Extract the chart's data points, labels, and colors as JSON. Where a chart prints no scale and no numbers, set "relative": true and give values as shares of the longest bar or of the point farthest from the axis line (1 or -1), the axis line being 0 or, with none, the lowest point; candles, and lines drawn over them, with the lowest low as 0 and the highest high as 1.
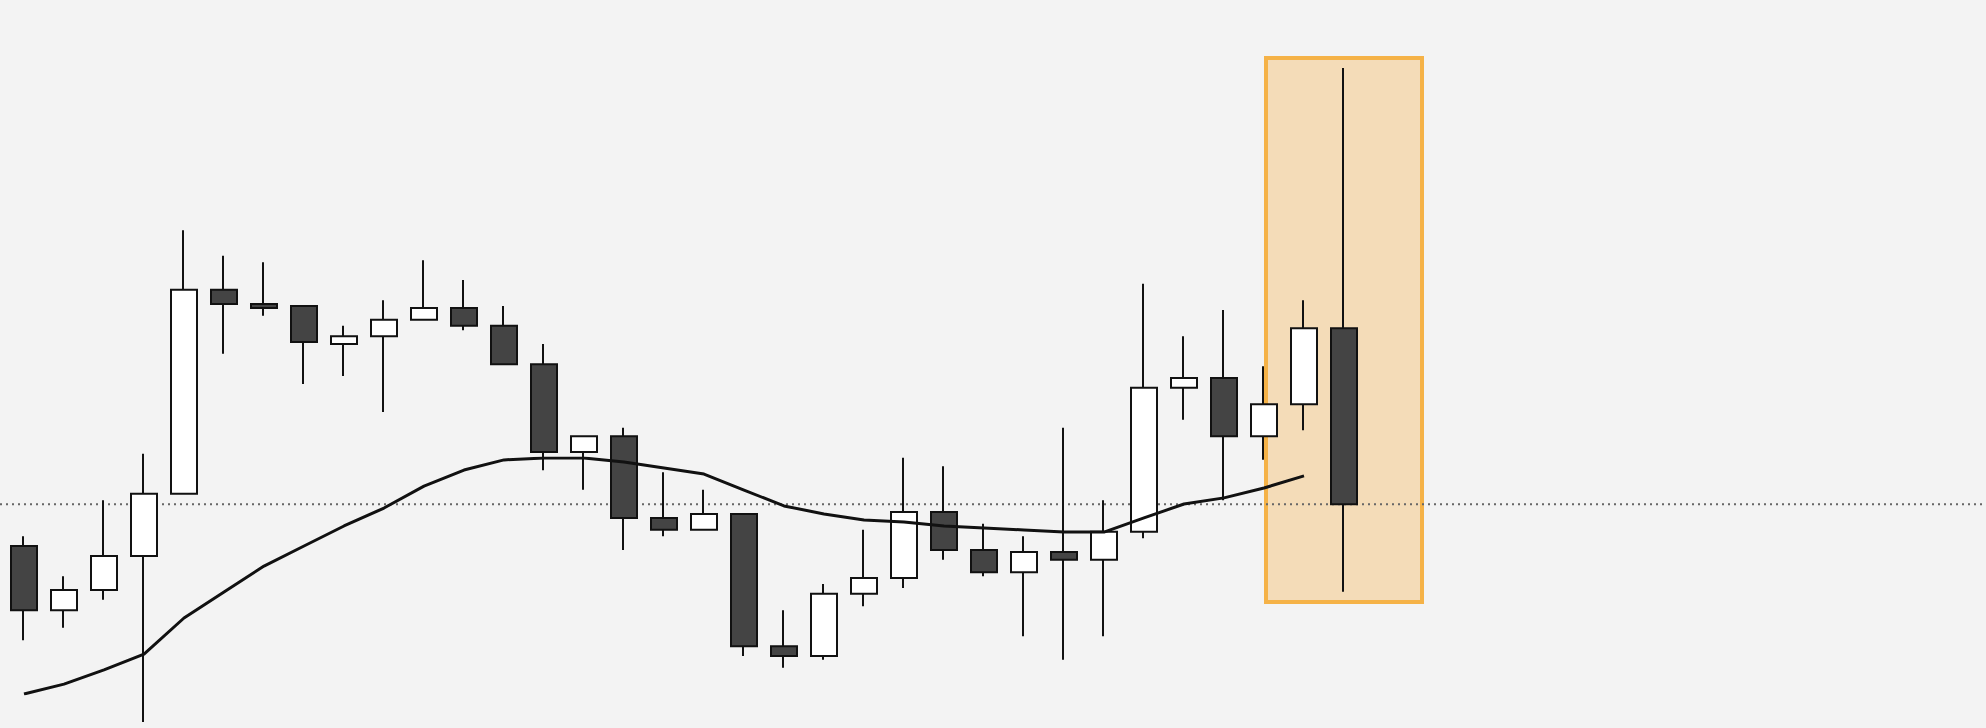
{
  "chart_data": [
    {
      "type": "candlestick",
      "relative": true,
      "categories": [
        null,
        null,
        null,
        null,
        null,
        null,
        null,
        null,
        null,
        null,
        null,
        null,
        null,
        null,
        null,
        null,
        null,
        null,
        null,
        null,
        null,
        null,
        null,
        null,
        null,
        null,
        null,
        null,
        null,
        null,
        null,
        null,
        null,
        null
      ],
      "ohlc": [
        [
          0.269,
          0.284,
          0.125,
          0.171
        ],
        [
          0.171,
          0.223,
          0.144,
          0.202
        ],
        [
          0.202,
          0.339,
          0.187,
          0.254
        ],
        [
          0.254,
          0.41,
          0,
          0.349
        ],
        [
          0.349,
          0.752,
          0.349,
          0.661
        ],
        [
          0.661,
          0.713,
          0.563,
          0.639
        ],
        [
          0.639,
          0.703,
          0.621,
          0.633
        ],
        [
          0.636,
          0.636,
          0.517,
          0.581
        ],
        [
          0.578,
          0.606,
          0.529,
          0.59
        ],
        [
          0.59,
          0.645,
          0.474,
          0.615
        ],
        [
          0.615,
          0.706,
          0.615,
          0.633
        ],
        [
          0.633,
          0.676,
          0.599,
          0.606
        ],
        [
          0.606,
          0.636,
          0.547,
          0.547
        ],
        [
          0.547,
          0.578,
          0.385,
          0.413
        ],
        [
          0.413,
          0.437,
          0.355,
          0.437
        ],
        [
          0.437,
          0.45,
          0.263,
          0.312
        ],
        [
          0.312,
          0.382,
          0.284,
          0.294
        ],
        [
          0.294,
          0.355,
          0.294,
          0.318
        ],
        [
          0.318,
          0.318,
          0.101,
          0.116
        ],
        [
          0.116,
          0.171,
          0.083,
          0.101
        ],
        [
          0.101,
          0.211,
          0.095,
          0.196
        ],
        [
          0.196,
          0.294,
          0.177,
          0.22
        ],
        [
          0.22,
          0.404,
          0.205,
          0.321
        ],
        [
          0.321,
          0.391,
          0.248,
          0.263
        ],
        [
          0.263,
          0.303,
          0.223,
          0.229
        ],
        [
          0.229,
          0.284,
          0.131,
          0.26
        ],
        [
          0.26,
          0.45,
          0.095,
          0.248
        ],
        [
          0.248,
          0.339,
          0.131,
          0.291
        ],
        [
          0.291,
          0.67,
          0.281,
          0.511
        ],
        [
          0.511,
          0.59,
          0.462,
          0.526
        ],
        [
          0.526,
          0.63,
          0.339,
          0.437
        ],
        [
          0.437,
          0.544,
          0.401,
          0.486
        ],
        [
          0.486,
          0.645,
          0.446,
          0.602
        ],
        [
          0.602,
          1,
          0.199,
          0.333
        ]
      ],
      "colors": [
        "#444444",
        "#ffffff",
        "#ffffff",
        "#ffffff",
        "#ffffff",
        "#444444",
        "#444444",
        "#444444",
        "#ffffff",
        "#ffffff",
        "#ffffff",
        "#444444",
        "#444444",
        "#444444",
        "#ffffff",
        "#444444",
        "#444444",
        "#ffffff",
        "#444444",
        "#444444",
        "#ffffff",
        "#ffffff",
        "#ffffff",
        "#444444",
        "#444444",
        "#ffffff",
        "#444444",
        "#ffffff",
        "#ffffff",
        "#ffffff",
        "#444444",
        "#ffffff",
        "#ffffff",
        "#444444"
      ],
      "ref_lines": [
        {
          "axis": "y",
          "value": 0.333,
          "color": "#666666",
          "line_style": "dotted"
        }
      ],
      "tick_labels": false
    },
    {
      "type": "line",
      "relative": true,
      "categories": [
        null,
        null,
        null,
        null,
        null,
        null,
        null,
        null,
        null,
        null,
        null,
        null,
        null,
        null,
        null,
        null,
        null,
        null,
        null,
        null,
        null,
        null,
        null,
        null,
        null,
        null,
        null,
        null,
        null,
        null,
        null,
        null,
        null,
        null
      ],
      "series": [
        {
          "color": "#111111",
          "values": [
            0,
            0.042,
            0.102,
            0.169,
            0.322,
            0.432,
            0.542,
            0.627,
            0.712,
            0.788,
            0.881,
            0.949,
            0.992,
            1,
            1,
            0.983,
            0.958,
            0.932,
            0.864,
            0.797,
            0.763,
            0.737,
            0.729,
            0.712,
            0.703,
            0.695,
            0.686,
            0.686,
            0.746,
            0.805,
            0.831,
            0.873,
            0.924,
            null
          ]
        }
      ],
      "tick_labels": false,
      "marker": "none"
    }
  ]
}
